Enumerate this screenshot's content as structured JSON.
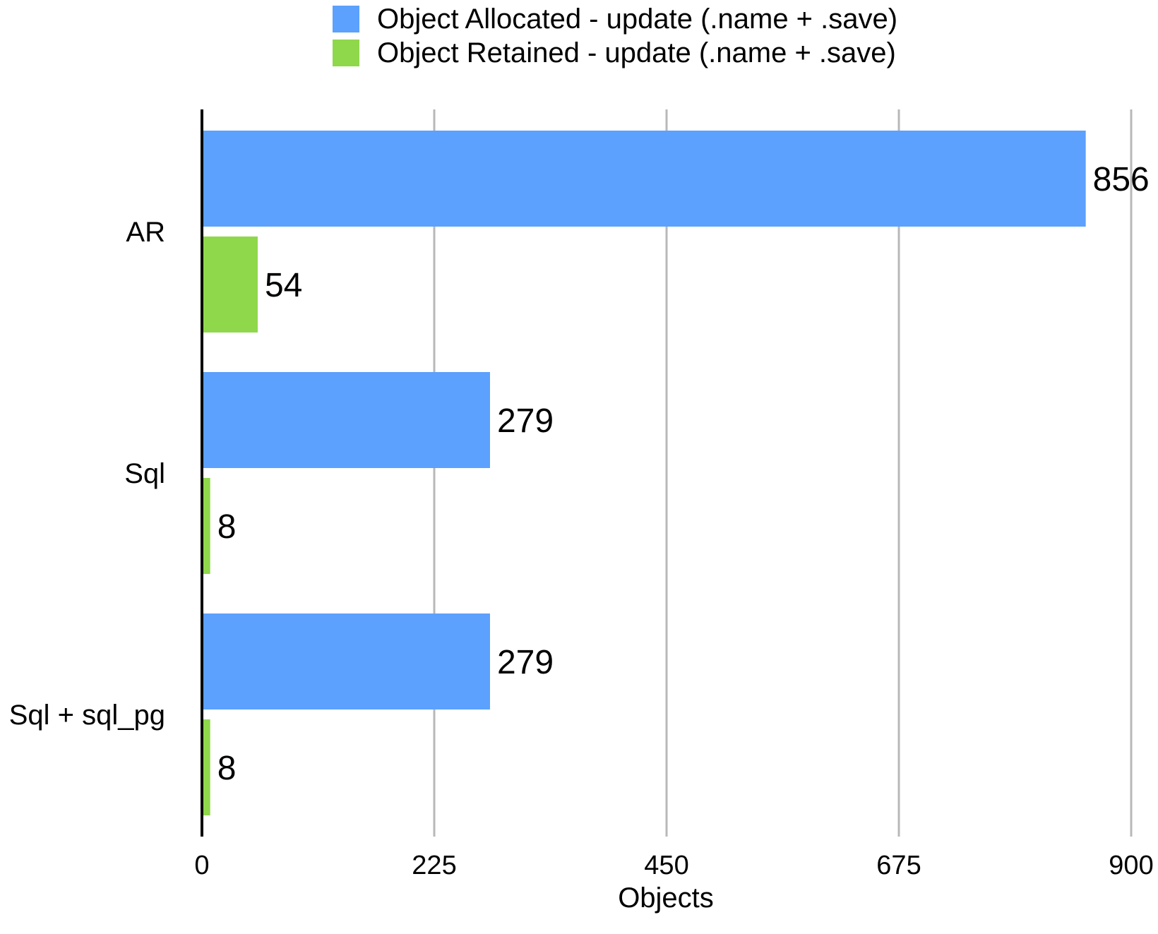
{
  "chart_data": {
    "type": "bar",
    "orientation": "horizontal",
    "categories": [
      "AR",
      "Sql",
      "Sql + sql_pg"
    ],
    "series": [
      {
        "name": "Object Allocated - update (.name + .save)",
        "values": [
          856,
          279,
          279
        ],
        "color": "#5ba1fd"
      },
      {
        "name": "Object Retained - update (.name + .save)",
        "values": [
          54,
          8,
          8
        ],
        "color": "#8fd74b"
      }
    ],
    "xlabel": "Objects",
    "ylabel": "",
    "title": "",
    "xlim": [
      0,
      900
    ],
    "xticks": [
      0,
      225,
      450,
      675,
      900
    ],
    "grid": "vertical",
    "legend": "top-center"
  }
}
